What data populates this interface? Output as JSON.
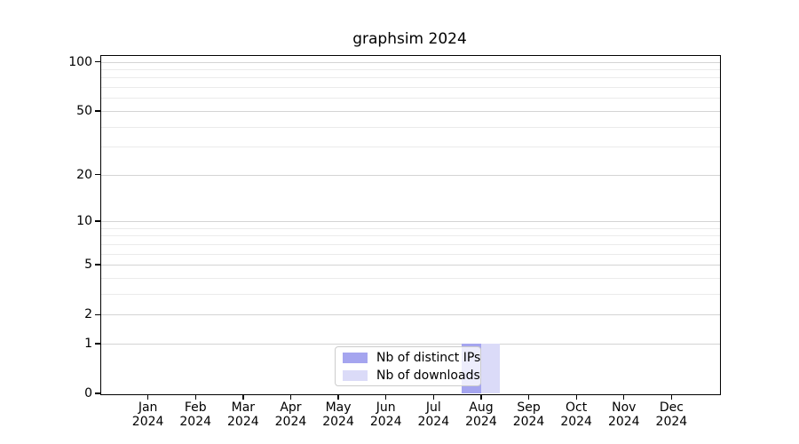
{
  "title": "graphsim 2024",
  "chart_data": {
    "type": "bar",
    "title": "graphsim 2024",
    "categories": [
      "Jan 2024",
      "Feb 2024",
      "Mar 2024",
      "Apr 2024",
      "May 2024",
      "Jun 2024",
      "Jul 2024",
      "Aug 2024",
      "Sep 2024",
      "Oct 2024",
      "Nov 2024",
      "Dec 2024"
    ],
    "x_tick_line1": [
      "Jan",
      "Feb",
      "Mar",
      "Apr",
      "May",
      "Jun",
      "Jul",
      "Aug",
      "Sep",
      "Oct",
      "Nov",
      "Dec"
    ],
    "x_tick_line2": "2024",
    "series": [
      {
        "name": "Nb of distinct IPs",
        "color": "#a5a5ef",
        "values": [
          0,
          0,
          0,
          0,
          0,
          0,
          0,
          1,
          0,
          0,
          0,
          0
        ]
      },
      {
        "name": "Nb of downloads",
        "color": "#dbdbf8",
        "values": [
          0,
          0,
          0,
          0,
          0,
          0,
          0,
          1,
          0,
          0,
          0,
          0
        ]
      }
    ],
    "y_scale": "log1p",
    "y_major_ticks": [
      0,
      1,
      2,
      5,
      10,
      20,
      50,
      100
    ],
    "y_minor_ticks": [
      3,
      4,
      6,
      7,
      8,
      9,
      30,
      40,
      60,
      70,
      80,
      90
    ],
    "ylim": [
      0,
      110
    ],
    "xlabel": "",
    "ylabel": "",
    "grid": true,
    "legend_position": "lower center"
  },
  "colors": {
    "bar_distinct_ips": "#a5a5ef",
    "bar_downloads": "#dbdbf8",
    "major_grid": "#d4d4d4",
    "minor_grid": "#ebebeb",
    "spine": "#000000",
    "background": "#ffffff"
  }
}
